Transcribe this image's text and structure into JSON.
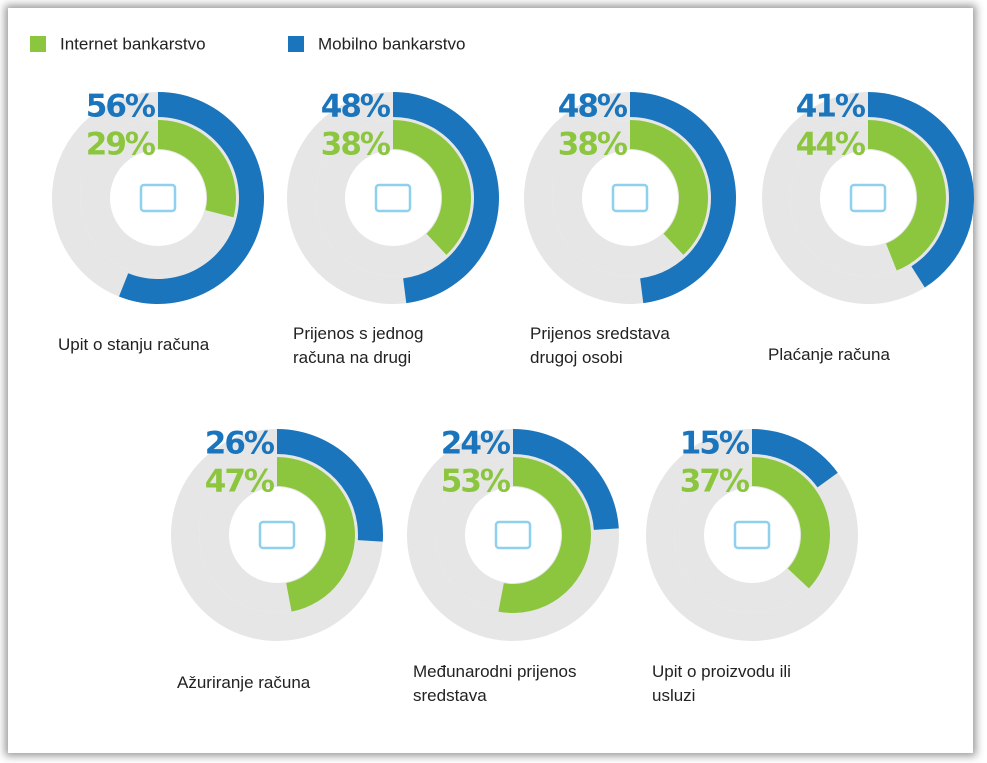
{
  "chart_data": {
    "type": "donut",
    "categories": [
      "Upit o stanju računa",
      "Prijenos s jednog računa na drugi",
      "Prijenos sredstava drugoj osobi",
      "Plaćanje računa",
      "Ažuriranje računa",
      "Međunarodni prijenos sredstava",
      "Upit o proizvodu ili usluzi"
    ],
    "series": [
      {
        "name": "Internet bankarstvo",
        "color": "#8cc63f",
        "values": [
          29,
          38,
          38,
          44,
          47,
          53,
          37
        ],
        "value_labels": [
          "29%",
          "38%",
          "38%",
          "44%",
          "47%",
          "53%",
          "37%"
        ]
      },
      {
        "name": "Mobilno bankarstvo",
        "color": "#1a75bc",
        "values": [
          56,
          48,
          48,
          41,
          26,
          24,
          15
        ],
        "value_labels": [
          "56%",
          "48%",
          "48%",
          "41%",
          "26%",
          "24%",
          "15%"
        ]
      }
    ]
  }
}
